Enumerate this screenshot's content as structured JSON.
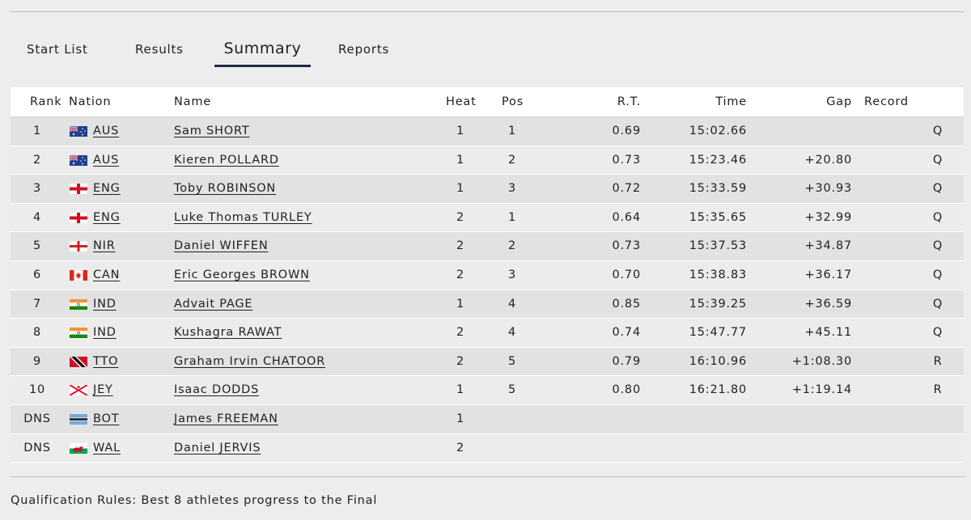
{
  "tabs": [
    {
      "label": "Start List",
      "active": false
    },
    {
      "label": "Results",
      "active": false
    },
    {
      "label": "Summary",
      "active": true
    },
    {
      "label": "Reports",
      "active": false
    }
  ],
  "table": {
    "headers": {
      "rank": "Rank",
      "nation": "Nation",
      "name": "Name",
      "heat": "Heat",
      "pos": "Pos",
      "rt": "R.T.",
      "time": "Time",
      "gap": "Gap",
      "record": "Record"
    },
    "rows": [
      {
        "rank": "1",
        "flag": "aus-flag-icon",
        "nation": "AUS",
        "name": "Sam SHORT",
        "heat": "1",
        "pos": "1",
        "rt": "0.69",
        "time": "15:02.66",
        "gap": "",
        "q": "Q"
      },
      {
        "rank": "2",
        "flag": "aus-flag-icon",
        "nation": "AUS",
        "name": "Kieren POLLARD",
        "heat": "1",
        "pos": "2",
        "rt": "0.73",
        "time": "15:23.46",
        "gap": "+20.80",
        "q": "Q"
      },
      {
        "rank": "3",
        "flag": "eng-flag-icon",
        "nation": "ENG",
        "name": "Toby ROBINSON",
        "heat": "1",
        "pos": "3",
        "rt": "0.72",
        "time": "15:33.59",
        "gap": "+30.93",
        "q": "Q"
      },
      {
        "rank": "4",
        "flag": "eng-flag-icon",
        "nation": "ENG",
        "name": "Luke Thomas TURLEY",
        "heat": "2",
        "pos": "1",
        "rt": "0.64",
        "time": "15:35.65",
        "gap": "+32.99",
        "q": "Q"
      },
      {
        "rank": "5",
        "flag": "nir-flag-icon",
        "nation": "NIR",
        "name": "Daniel WIFFEN",
        "heat": "2",
        "pos": "2",
        "rt": "0.73",
        "time": "15:37.53",
        "gap": "+34.87",
        "q": "Q"
      },
      {
        "rank": "6",
        "flag": "can-flag-icon",
        "nation": "CAN",
        "name": "Eric Georges BROWN",
        "heat": "2",
        "pos": "3",
        "rt": "0.70",
        "time": "15:38.83",
        "gap": "+36.17",
        "q": "Q"
      },
      {
        "rank": "7",
        "flag": "ind-flag-icon",
        "nation": "IND",
        "name": "Advait PAGE",
        "heat": "1",
        "pos": "4",
        "rt": "0.85",
        "time": "15:39.25",
        "gap": "+36.59",
        "q": "Q"
      },
      {
        "rank": "8",
        "flag": "ind-flag-icon",
        "nation": "IND",
        "name": "Kushagra RAWAT",
        "heat": "2",
        "pos": "4",
        "rt": "0.74",
        "time": "15:47.77",
        "gap": "+45.11",
        "q": "Q"
      },
      {
        "rank": "9",
        "flag": "tto-flag-icon",
        "nation": "TTO",
        "name": "Graham Irvin CHATOOR",
        "heat": "2",
        "pos": "5",
        "rt": "0.79",
        "time": "16:10.96",
        "gap": "+1:08.30",
        "q": "R"
      },
      {
        "rank": "10",
        "flag": "jey-flag-icon",
        "nation": "JEY",
        "name": "Isaac DODDS",
        "heat": "1",
        "pos": "5",
        "rt": "0.80",
        "time": "16:21.80",
        "gap": "+1:19.14",
        "q": "R"
      },
      {
        "rank": "DNS",
        "flag": "bot-flag-icon",
        "nation": "BOT",
        "name": "James FREEMAN",
        "heat": "1",
        "pos": "",
        "rt": "",
        "time": "",
        "gap": "",
        "q": ""
      },
      {
        "rank": "DNS",
        "flag": "wal-flag-icon",
        "nation": "WAL",
        "name": "Daniel JERVIS",
        "heat": "2",
        "pos": "",
        "rt": "",
        "time": "",
        "gap": "",
        "q": ""
      }
    ]
  },
  "footer": {
    "qualification_rules": "Qualification Rules: Best 8 athletes progress to the Final"
  }
}
